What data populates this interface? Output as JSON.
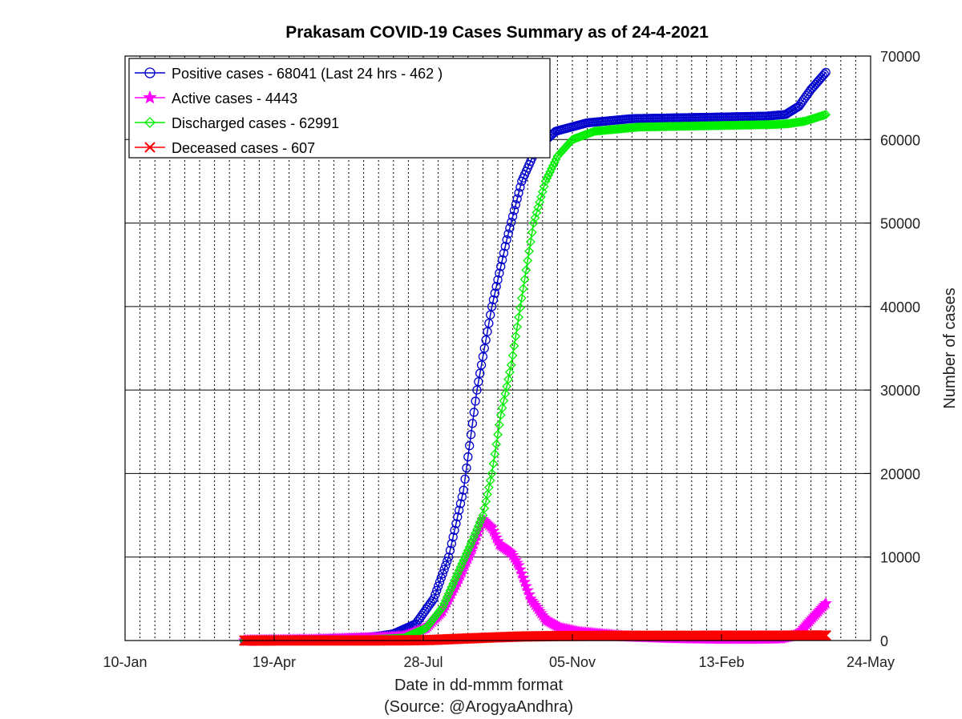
{
  "chart_data": {
    "type": "line",
    "title": "Prakasam COVID-19 Cases Summary as of 24-4-2021",
    "xlabel": "Date in dd-mmm format",
    "source_note": "(Source: @ArogyaAndhra)",
    "ylabel": "Number of cases",
    "x_range": [
      "2020-01-10",
      "2021-05-24"
    ],
    "x_ticks": [
      {
        "date": "2020-01-10",
        "label": "10-Jan"
      },
      {
        "date": "2020-04-19",
        "label": "19-Apr"
      },
      {
        "date": "2020-07-28",
        "label": "28-Jul"
      },
      {
        "date": "2020-11-05",
        "label": "05-Nov"
      },
      {
        "date": "2021-02-13",
        "label": "13-Feb"
      },
      {
        "date": "2021-05-24",
        "label": "24-May"
      }
    ],
    "ylim": [
      0,
      70000
    ],
    "y_ticks": [
      0,
      10000,
      20000,
      30000,
      40000,
      50000,
      60000,
      70000
    ],
    "y_axis_side": "right",
    "grid": true,
    "legend_position": "top-left",
    "series": [
      {
        "name": "Positive cases - 68041 (Last 24 hrs - 462 )",
        "color": "#0000cc",
        "marker": "circle",
        "points": [
          [
            "2020-03-30",
            0
          ],
          [
            "2020-05-18",
            150
          ],
          [
            "2020-06-23",
            400
          ],
          [
            "2020-07-08",
            800
          ],
          [
            "2020-07-23",
            2000
          ],
          [
            "2020-08-04",
            5000
          ],
          [
            "2020-08-14",
            10000
          ],
          [
            "2020-08-24",
            18000
          ],
          [
            "2020-09-02",
            30000
          ],
          [
            "2020-09-12",
            40000
          ],
          [
            "2020-09-22",
            48000
          ],
          [
            "2020-10-02",
            55000
          ],
          [
            "2020-10-12",
            59000
          ],
          [
            "2020-10-25",
            61000
          ],
          [
            "2020-11-15",
            62000
          ],
          [
            "2020-12-15",
            62500
          ],
          [
            "2021-01-15",
            62600
          ],
          [
            "2021-02-15",
            62700
          ],
          [
            "2021-03-15",
            62800
          ],
          [
            "2021-03-28",
            63000
          ],
          [
            "2021-04-06",
            64000
          ],
          [
            "2021-04-14",
            66000
          ],
          [
            "2021-04-24",
            68041
          ]
        ]
      },
      {
        "name": "Active cases - 4443",
        "color": "#ff00ff",
        "marker": "star",
        "points": [
          [
            "2020-03-30",
            0
          ],
          [
            "2020-05-18",
            100
          ],
          [
            "2020-06-23",
            300
          ],
          [
            "2020-07-15",
            500
          ],
          [
            "2020-07-30",
            1500
          ],
          [
            "2020-08-10",
            3500
          ],
          [
            "2020-08-20",
            7000
          ],
          [
            "2020-08-30",
            11000
          ],
          [
            "2020-09-06",
            14500
          ],
          [
            "2020-09-12",
            13500
          ],
          [
            "2020-09-17",
            11500
          ],
          [
            "2020-09-25",
            10500
          ],
          [
            "2020-09-30",
            9000
          ],
          [
            "2020-10-08",
            5000
          ],
          [
            "2020-10-18",
            2500
          ],
          [
            "2020-10-28",
            1500
          ],
          [
            "2020-11-10",
            1000
          ],
          [
            "2020-12-10",
            500
          ],
          [
            "2021-01-10",
            300
          ],
          [
            "2021-02-10",
            200
          ],
          [
            "2021-03-10",
            200
          ],
          [
            "2021-03-25",
            250
          ],
          [
            "2021-04-05",
            700
          ],
          [
            "2021-04-14",
            2500
          ],
          [
            "2021-04-24",
            4443
          ]
        ]
      },
      {
        "name": "Discharged cases - 62991",
        "color": "#00ee00",
        "marker": "diamond",
        "points": [
          [
            "2020-03-30",
            0
          ],
          [
            "2020-05-18",
            50
          ],
          [
            "2020-06-23",
            100
          ],
          [
            "2020-07-15",
            300
          ],
          [
            "2020-07-30",
            1500
          ],
          [
            "2020-08-10",
            4000
          ],
          [
            "2020-08-20",
            8000
          ],
          [
            "2020-08-30",
            12000
          ],
          [
            "2020-09-06",
            15000
          ],
          [
            "2020-09-12",
            20000
          ],
          [
            "2020-09-18",
            27000
          ],
          [
            "2020-09-25",
            33000
          ],
          [
            "2020-10-02",
            41000
          ],
          [
            "2020-10-10",
            50000
          ],
          [
            "2020-10-18",
            55000
          ],
          [
            "2020-10-26",
            58000
          ],
          [
            "2020-11-05",
            60000
          ],
          [
            "2020-11-20",
            61000
          ],
          [
            "2020-12-20",
            61500
          ],
          [
            "2021-01-20",
            61600
          ],
          [
            "2021-02-20",
            61700
          ],
          [
            "2021-03-20",
            61800
          ],
          [
            "2021-03-30",
            61900
          ],
          [
            "2021-04-10",
            62200
          ],
          [
            "2021-04-24",
            62991
          ]
        ]
      },
      {
        "name": "Deceased cases - 607",
        "color": "#ff0000",
        "marker": "x",
        "points": [
          [
            "2020-03-30",
            0
          ],
          [
            "2020-05-18",
            5
          ],
          [
            "2020-06-23",
            10
          ],
          [
            "2020-07-15",
            20
          ],
          [
            "2020-08-01",
            60
          ],
          [
            "2020-08-20",
            200
          ],
          [
            "2020-09-10",
            350
          ],
          [
            "2020-10-01",
            480
          ],
          [
            "2020-10-25",
            540
          ],
          [
            "2020-11-20",
            560
          ],
          [
            "2021-01-01",
            570
          ],
          [
            "2021-02-15",
            575
          ],
          [
            "2021-03-20",
            580
          ],
          [
            "2021-04-24",
            607
          ]
        ]
      }
    ]
  }
}
